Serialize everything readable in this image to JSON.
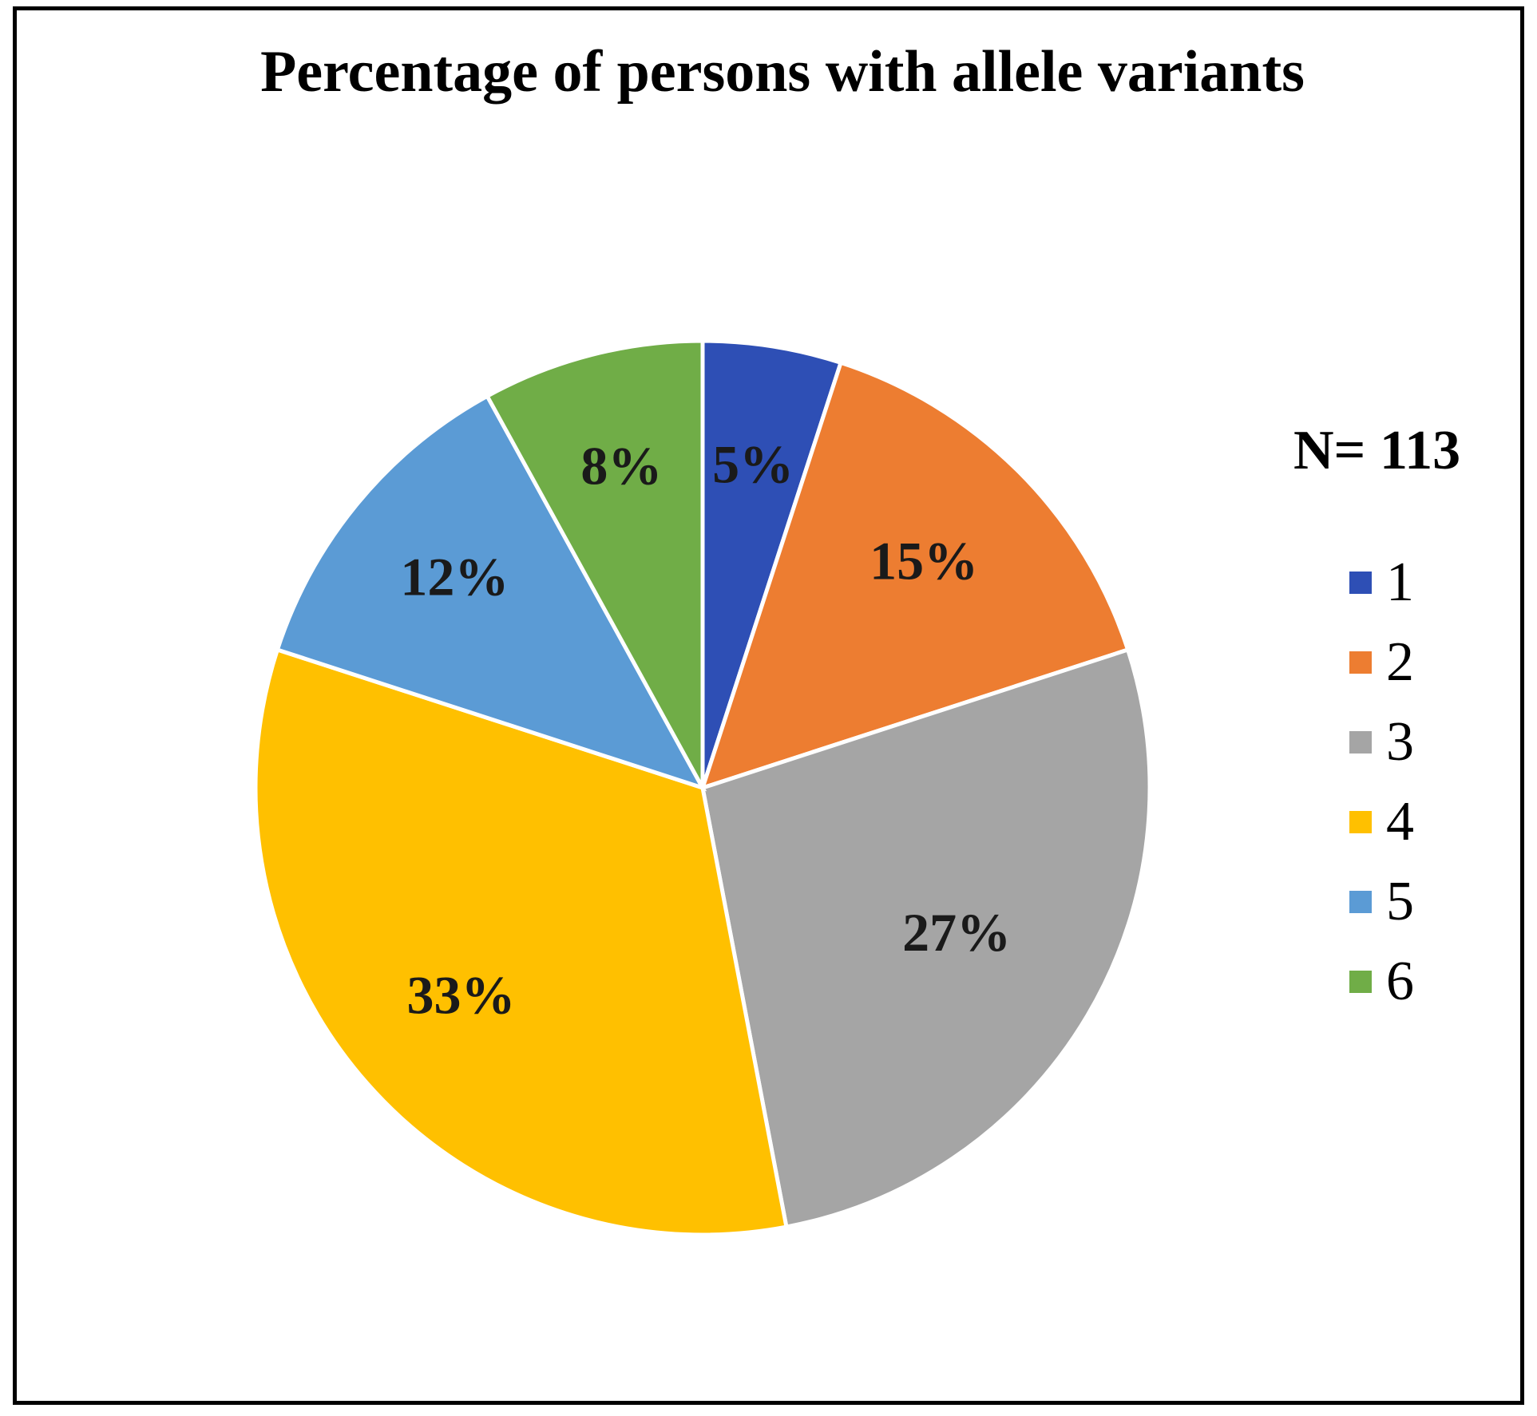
{
  "chart_data": {
    "type": "pie",
    "title": "Percentage of persons with allele variants",
    "annotation": "N= 113",
    "categories": [
      "1",
      "2",
      "3",
      "4",
      "5",
      "6"
    ],
    "values": [
      5,
      15,
      27,
      33,
      12,
      8
    ],
    "value_labels": [
      "5%",
      "15%",
      "27%",
      "33%",
      "12%",
      "8%"
    ],
    "colors": [
      "#2E4FB5",
      "#ED7D31",
      "#A5A5A5",
      "#FFC000",
      "#5B9BD5",
      "#70AD47"
    ],
    "legend_position": "right",
    "start_angle": "12 o'clock, clockwise"
  }
}
